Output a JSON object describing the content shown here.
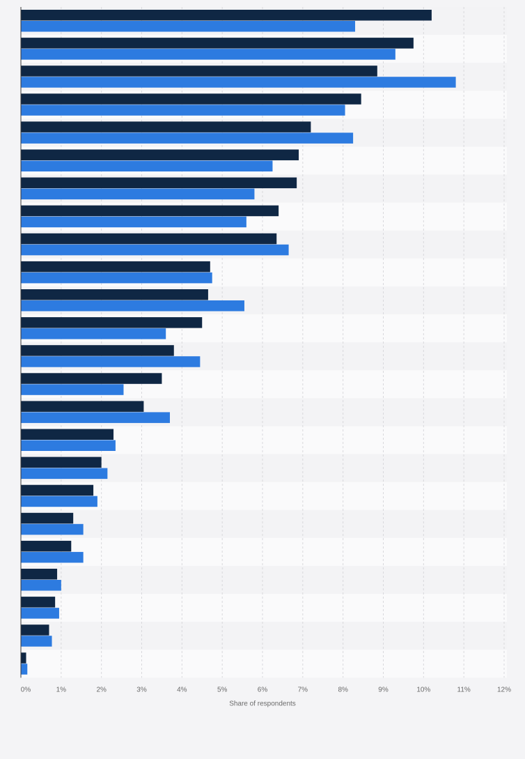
{
  "chart_data": {
    "type": "bar",
    "orientation": "horizontal",
    "xlabel": "Share of respondents",
    "ylabel": "",
    "xlim": [
      0,
      12
    ],
    "xticks": [
      "0%",
      "1%",
      "2%",
      "3%",
      "4%",
      "5%",
      "6%",
      "7%",
      "8%",
      "9%",
      "10%",
      "11%",
      "12%"
    ],
    "grid": true,
    "category_count": 24,
    "series": [
      {
        "color": "#0f2744",
        "values": [
          10.2,
          9.75,
          8.85,
          8.45,
          7.2,
          6.9,
          6.85,
          6.4,
          6.35,
          4.7,
          4.65,
          4.5,
          3.8,
          3.5,
          3.05,
          2.3,
          2.0,
          1.8,
          1.3,
          1.25,
          0.9,
          0.85,
          0.7,
          0.13
        ]
      },
      {
        "color": "#2d7be0",
        "values": [
          8.3,
          9.3,
          10.8,
          8.05,
          8.25,
          6.25,
          5.8,
          5.6,
          6.65,
          4.75,
          5.55,
          3.6,
          4.45,
          2.55,
          3.7,
          2.35,
          2.15,
          1.9,
          1.55,
          1.55,
          1.0,
          0.95,
          0.77,
          0.16
        ]
      }
    ]
  }
}
